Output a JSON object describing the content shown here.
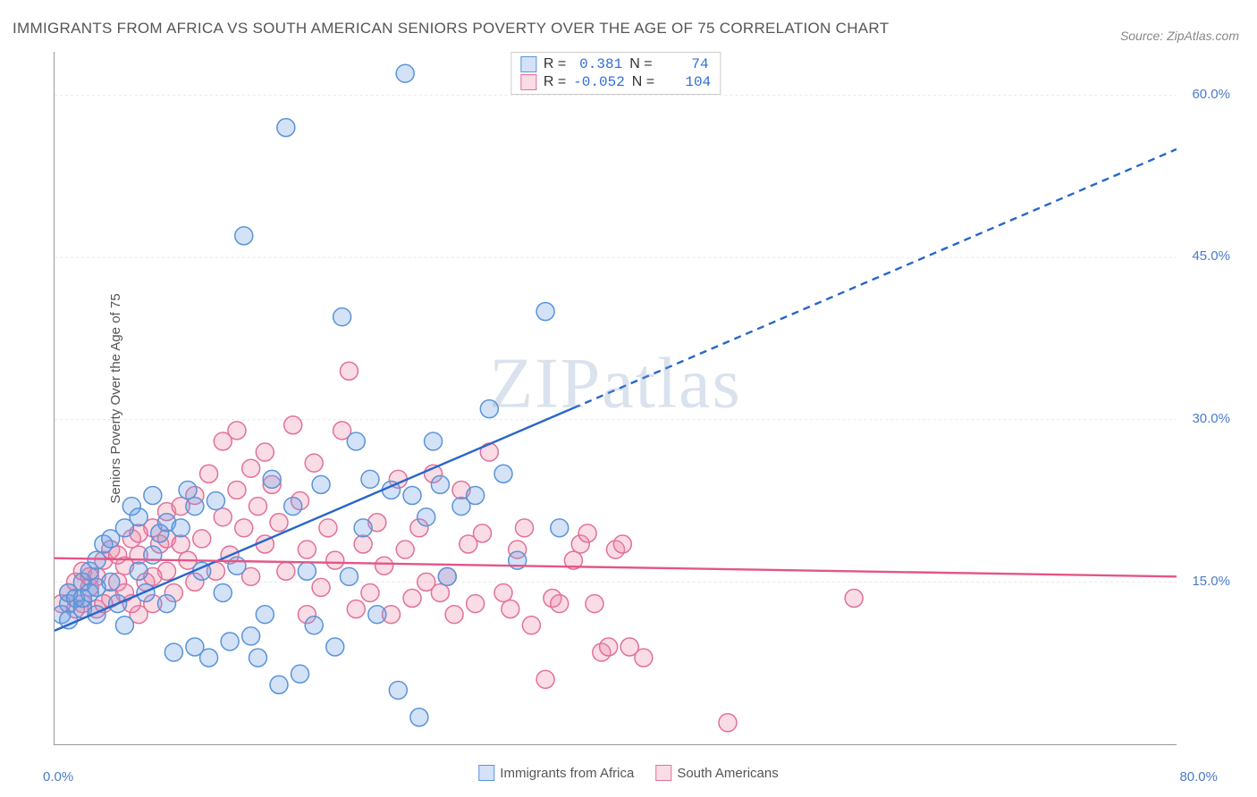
{
  "title": "IMMIGRANTS FROM AFRICA VS SOUTH AMERICAN SENIORS POVERTY OVER THE AGE OF 75 CORRELATION CHART",
  "source": "Source: ZipAtlas.com",
  "y_axis_label": "Seniors Poverty Over the Age of 75",
  "watermark": "ZIPatlas",
  "chart": {
    "type": "scatter",
    "xlim": [
      0,
      80
    ],
    "ylim": [
      0,
      64
    ],
    "x_ticks_label_min": "0.0%",
    "x_ticks_label_max": "80.0%",
    "x_tick_positions": [
      0,
      5,
      10,
      15,
      20,
      25,
      30,
      35,
      40,
      45,
      50,
      55,
      60,
      65,
      70,
      75,
      80
    ],
    "y_ticks": [
      {
        "val": 15,
        "label": "15.0%"
      },
      {
        "val": 30,
        "label": "30.0%"
      },
      {
        "val": 45,
        "label": "45.0%"
      },
      {
        "val": 60,
        "label": "60.0%"
      }
    ],
    "grid_color": "#e6e6e6",
    "background_color": "#ffffff",
    "marker_radius": 10,
    "marker_stroke_width": 1.5,
    "series": [
      {
        "name": "Immigrants from Africa",
        "fill": "rgba(110,160,230,0.30)",
        "stroke": "#5a93d8",
        "trend": {
          "color": "#2966c9",
          "width": 2.4,
          "dash_after_x": 37,
          "x1": 0,
          "y1": 10.5,
          "x2": 80,
          "y2": 55
        },
        "r_value": "0.381",
        "n_value": "74",
        "points": [
          [
            0.5,
            12
          ],
          [
            1,
            13
          ],
          [
            1,
            14
          ],
          [
            1.5,
            13.5
          ],
          [
            2,
            12.5
          ],
          [
            2,
            15
          ],
          [
            2.5,
            14
          ],
          [
            2.5,
            16
          ],
          [
            3,
            12
          ],
          [
            3,
            17
          ],
          [
            3.5,
            18.5
          ],
          [
            4,
            15
          ],
          [
            4,
            19
          ],
          [
            4.5,
            13
          ],
          [
            5,
            20
          ],
          [
            5,
            11
          ],
          [
            5.5,
            22
          ],
          [
            6,
            16
          ],
          [
            6,
            21
          ],
          [
            6.5,
            14
          ],
          [
            7,
            23
          ],
          [
            7,
            17.5
          ],
          [
            7.5,
            19.5
          ],
          [
            8,
            13
          ],
          [
            8,
            20.5
          ],
          [
            8.5,
            8.5
          ],
          [
            9,
            20
          ],
          [
            9.5,
            23.5
          ],
          [
            10,
            9
          ],
          [
            10,
            22
          ],
          [
            10.5,
            16
          ],
          [
            11,
            8
          ],
          [
            11.5,
            22.5
          ],
          [
            12,
            14
          ],
          [
            12.5,
            9.5
          ],
          [
            13,
            16.5
          ],
          [
            13.5,
            47
          ],
          [
            14,
            10
          ],
          [
            14.5,
            8
          ],
          [
            15,
            12
          ],
          [
            15.5,
            24.5
          ],
          [
            16,
            5.5
          ],
          [
            16.5,
            57
          ],
          [
            17,
            22
          ],
          [
            17.5,
            6.5
          ],
          [
            18,
            16
          ],
          [
            18.5,
            11
          ],
          [
            19,
            24
          ],
          [
            20,
            9
          ],
          [
            20.5,
            39.5
          ],
          [
            21,
            15.5
          ],
          [
            21.5,
            28
          ],
          [
            22,
            20
          ],
          [
            22.5,
            24.5
          ],
          [
            23,
            12
          ],
          [
            24,
            23.5
          ],
          [
            24.5,
            5
          ],
          [
            25,
            62
          ],
          [
            25.5,
            23
          ],
          [
            26,
            2.5
          ],
          [
            26.5,
            21
          ],
          [
            27,
            28
          ],
          [
            27.5,
            24
          ],
          [
            28,
            15.5
          ],
          [
            29,
            22
          ],
          [
            30,
            23
          ],
          [
            31,
            31
          ],
          [
            32,
            25
          ],
          [
            33,
            17
          ],
          [
            35,
            40
          ],
          [
            36,
            20
          ],
          [
            1,
            11.5
          ],
          [
            2,
            13.5
          ],
          [
            3,
            14.5
          ]
        ]
      },
      {
        "name": "South Americans",
        "fill": "rgba(240,140,170,0.30)",
        "stroke": "#e27099",
        "trend": {
          "color": "#e35588",
          "width": 2.4,
          "dash_after_x": 100,
          "x1": 0,
          "y1": 17.2,
          "x2": 80,
          "y2": 15.5
        },
        "r_value": "-0.052",
        "n_value": "104",
        "points": [
          [
            0.5,
            13
          ],
          [
            1,
            14
          ],
          [
            1.5,
            15
          ],
          [
            2,
            13
          ],
          [
            2,
            16
          ],
          [
            2.5,
            14.5
          ],
          [
            3,
            12.5
          ],
          [
            3,
            15.5
          ],
          [
            3.5,
            17
          ],
          [
            4,
            13.5
          ],
          [
            4,
            18
          ],
          [
            4.5,
            15
          ],
          [
            5,
            16.5
          ],
          [
            5,
            14
          ],
          [
            5.5,
            19
          ],
          [
            6,
            12
          ],
          [
            6,
            17.5
          ],
          [
            6.5,
            15
          ],
          [
            7,
            20
          ],
          [
            7,
            13
          ],
          [
            7.5,
            18.5
          ],
          [
            8,
            21.5
          ],
          [
            8,
            16
          ],
          [
            8.5,
            14
          ],
          [
            9,
            22
          ],
          [
            9.5,
            17
          ],
          [
            10,
            15
          ],
          [
            10,
            23
          ],
          [
            10.5,
            19
          ],
          [
            11,
            25
          ],
          [
            11.5,
            16
          ],
          [
            12,
            21
          ],
          [
            12,
            28
          ],
          [
            12.5,
            17.5
          ],
          [
            13,
            23.5
          ],
          [
            13,
            29
          ],
          [
            13.5,
            20
          ],
          [
            14,
            25.5
          ],
          [
            14,
            15.5
          ],
          [
            14.5,
            22
          ],
          [
            15,
            27
          ],
          [
            15,
            18.5
          ],
          [
            15.5,
            24
          ],
          [
            16,
            20.5
          ],
          [
            16.5,
            16
          ],
          [
            17,
            29.5
          ],
          [
            17.5,
            22.5
          ],
          [
            18,
            12
          ],
          [
            18,
            18
          ],
          [
            18.5,
            26
          ],
          [
            19,
            14.5
          ],
          [
            19.5,
            20
          ],
          [
            20,
            17
          ],
          [
            20.5,
            29
          ],
          [
            21,
            34.5
          ],
          [
            21.5,
            12.5
          ],
          [
            22,
            18.5
          ],
          [
            22.5,
            14
          ],
          [
            23,
            20.5
          ],
          [
            23.5,
            16.5
          ],
          [
            24,
            12
          ],
          [
            24.5,
            24.5
          ],
          [
            25,
            18
          ],
          [
            25.5,
            13.5
          ],
          [
            26,
            20
          ],
          [
            26.5,
            15
          ],
          [
            27,
            25
          ],
          [
            27.5,
            14
          ],
          [
            28,
            15.5
          ],
          [
            28.5,
            12
          ],
          [
            29,
            23.5
          ],
          [
            29.5,
            18.5
          ],
          [
            30,
            13
          ],
          [
            30.5,
            19.5
          ],
          [
            31,
            27
          ],
          [
            32,
            14
          ],
          [
            32.5,
            12.5
          ],
          [
            33,
            18
          ],
          [
            33.5,
            20
          ],
          [
            34,
            11
          ],
          [
            35,
            6
          ],
          [
            35.5,
            13.5
          ],
          [
            36,
            13
          ],
          [
            37,
            17
          ],
          [
            37.5,
            18.5
          ],
          [
            38,
            19.5
          ],
          [
            38.5,
            13
          ],
          [
            39,
            8.5
          ],
          [
            39.5,
            9
          ],
          [
            40,
            18
          ],
          [
            40.5,
            18.5
          ],
          [
            41,
            9
          ],
          [
            42,
            8
          ],
          [
            48,
            2
          ],
          [
            57,
            13.5
          ],
          [
            1.5,
            12.5
          ],
          [
            2.5,
            15.5
          ],
          [
            3.5,
            13
          ],
          [
            4.5,
            17.5
          ],
          [
            5.5,
            13
          ],
          [
            6,
            19.5
          ],
          [
            7,
            15.5
          ],
          [
            8,
            19
          ],
          [
            9,
            18.5
          ]
        ]
      }
    ]
  },
  "legend_r_label": "R =",
  "legend_n_label": "N ="
}
